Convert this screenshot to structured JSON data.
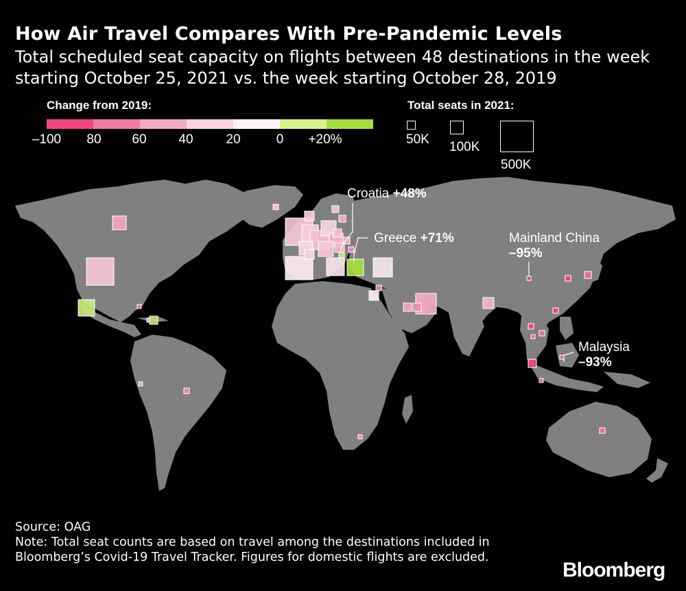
{
  "title": "How Air Travel Compares With Pre-Pandemic Levels",
  "subtitle": "Total scheduled seat capacity on flights between 48 destinations in the week starting October 25, 2021 vs. the week starting October 28, 2019",
  "color_legend": {
    "title": "Change from 2019:",
    "ticks": [
      "–100",
      "80",
      "60",
      "40",
      "20",
      "0",
      "+20%"
    ],
    "colors": [
      "#f0467d",
      "#f17aa6",
      "#f5a8c6",
      "#f9d1e0",
      "#fdf3f7",
      "#d7f28a",
      "#a6dd3c"
    ]
  },
  "size_legend": {
    "title": "Total seats in 2021:",
    "items": [
      {
        "label": "50K",
        "seats": 50000
      },
      {
        "label": "100K",
        "seats": 100000
      },
      {
        "label": "500K",
        "seats": 500000
      }
    ]
  },
  "annotations": {
    "croatia": {
      "name": "Croatia",
      "value": "+48%"
    },
    "greece": {
      "name": "Greece",
      "value": "+71%"
    },
    "china": {
      "name": "Mainland China",
      "value": "–95%"
    },
    "malaysia": {
      "name": "Malaysia",
      "value": "–93%"
    }
  },
  "map_colors": {
    "land": "#808080",
    "ocean": "#000000"
  },
  "source": "Source: OAG",
  "note": "Note: Total seat counts are based on travel among the destinations included in Bloomberg’s Covid-19 Travel Tracker. Figures for domestic flights are excluded.",
  "brand": "Bloomberg"
}
